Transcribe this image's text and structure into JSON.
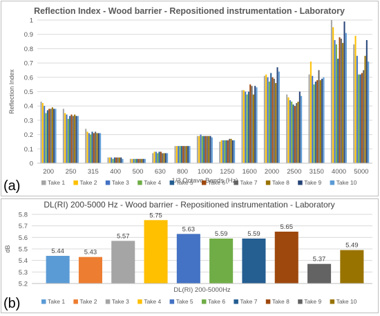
{
  "chart_data": [
    {
      "type": "bar",
      "panel_label": "(a)",
      "title": "Reflection Index - Wood barrier - Repositioned instrumentation - Laboratory",
      "xlabel": "1/3 Octave Bands (Hz)",
      "ylabel": "Reflection Index",
      "ylim": [
        0,
        1
      ],
      "yticks": [
        "0",
        "0.1",
        "0.2",
        "0.3",
        "0.4",
        "0.5",
        "0.6",
        "0.7",
        "0.8",
        "0.9",
        "1"
      ],
      "grid": true,
      "legend_position": "bottom",
      "categories": [
        "200",
        "250",
        "315",
        "400",
        "500",
        "630",
        "800",
        "1000",
        "1250",
        "1600",
        "2000",
        "2500",
        "3150",
        "4000",
        "5000"
      ],
      "series": [
        {
          "name": "Take 1",
          "color": "#a5a5a5",
          "values": [
            0.43,
            0.38,
            0.24,
            0.04,
            0.03,
            0.07,
            0.12,
            0.19,
            0.15,
            0.51,
            0.61,
            0.48,
            0.62,
            1.0,
            0.83
          ]
        },
        {
          "name": "Take 2",
          "color": "#ffc000",
          "values": [
            0.42,
            0.35,
            0.22,
            0.04,
            0.03,
            0.08,
            0.12,
            0.19,
            0.16,
            0.51,
            0.62,
            0.46,
            0.71,
            0.95,
            0.89
          ]
        },
        {
          "name": "Take 3",
          "color": "#4472c4",
          "values": [
            0.4,
            0.34,
            0.21,
            0.04,
            0.03,
            0.08,
            0.12,
            0.2,
            0.16,
            0.5,
            0.6,
            0.44,
            0.61,
            0.86,
            0.75
          ]
        },
        {
          "name": "Take 4",
          "color": "#70ad47",
          "values": [
            0.35,
            0.31,
            0.2,
            0.03,
            0.03,
            0.07,
            0.12,
            0.19,
            0.16,
            0.48,
            0.57,
            0.43,
            0.55,
            0.83,
            0.62
          ]
        },
        {
          "name": "Take 5",
          "color": "#255e91",
          "values": [
            0.37,
            0.33,
            0.22,
            0.04,
            0.03,
            0.08,
            0.12,
            0.19,
            0.16,
            0.5,
            0.63,
            0.41,
            0.57,
            0.73,
            0.62
          ]
        },
        {
          "name": "Take 6",
          "color": "#9e480e",
          "values": [
            0.38,
            0.34,
            0.21,
            0.04,
            0.03,
            0.08,
            0.12,
            0.19,
            0.16,
            0.55,
            0.6,
            0.4,
            0.58,
            0.88,
            0.63
          ]
        },
        {
          "name": "Take 7",
          "color": "#636363",
          "values": [
            0.38,
            0.33,
            0.22,
            0.04,
            0.03,
            0.07,
            0.12,
            0.19,
            0.17,
            0.54,
            0.59,
            0.42,
            0.65,
            0.87,
            0.65
          ]
        },
        {
          "name": "Take 8",
          "color": "#997300",
          "values": [
            0.39,
            0.34,
            0.21,
            0.04,
            0.03,
            0.07,
            0.12,
            0.19,
            0.17,
            0.48,
            0.56,
            0.43,
            0.58,
            0.84,
            0.75
          ]
        },
        {
          "name": "Take 9",
          "color": "#264478",
          "values": [
            0.38,
            0.33,
            0.21,
            0.04,
            0.03,
            0.07,
            0.12,
            0.19,
            0.16,
            0.54,
            0.67,
            0.5,
            0.59,
            0.99,
            0.86
          ]
        },
        {
          "name": "Take 10",
          "color": "#5b9bd5",
          "values": [
            0.38,
            0.33,
            0.21,
            0.03,
            0.03,
            0.07,
            0.12,
            0.18,
            0.16,
            0.53,
            0.64,
            0.47,
            0.6,
            0.91,
            0.71
          ]
        }
      ]
    },
    {
      "type": "bar",
      "panel_label": "(b)",
      "title": "DL(RI) 200-5000 Hz - Wood barrier - Repositioned instrumentation - Laboratory",
      "xlabel": "DL(RI) 200-5000Hz",
      "ylabel": "dB",
      "ylim": [
        5.2,
        5.8
      ],
      "yticks": [
        "5.2",
        "5.3",
        "5.4",
        "5.5",
        "5.6",
        "5.7",
        "5.8"
      ],
      "grid": true,
      "legend_position": "bottom",
      "series": [
        {
          "name": "Take 1",
          "color": "#5b9bd5",
          "value": 5.44,
          "label": "5.44"
        },
        {
          "name": "Take 2",
          "color": "#ed7d31",
          "value": 5.43,
          "label": "5.43"
        },
        {
          "name": "Take 3",
          "color": "#a5a5a5",
          "value": 5.57,
          "label": "5.57"
        },
        {
          "name": "Take 4",
          "color": "#ffc000",
          "value": 5.75,
          "label": "5.75"
        },
        {
          "name": "Take 5",
          "color": "#4472c4",
          "value": 5.63,
          "label": "5.63"
        },
        {
          "name": "Take 6",
          "color": "#70ad47",
          "value": 5.59,
          "label": "5.59"
        },
        {
          "name": "Take 7",
          "color": "#255e91",
          "value": 5.59,
          "label": "5.59"
        },
        {
          "name": "Take 8",
          "color": "#9e480e",
          "value": 5.65,
          "label": "5.65"
        },
        {
          "name": "Take 9",
          "color": "#636363",
          "value": 5.37,
          "label": "5.37"
        },
        {
          "name": "Take 10",
          "color": "#997300",
          "value": 5.49,
          "label": "5.49"
        }
      ]
    }
  ]
}
